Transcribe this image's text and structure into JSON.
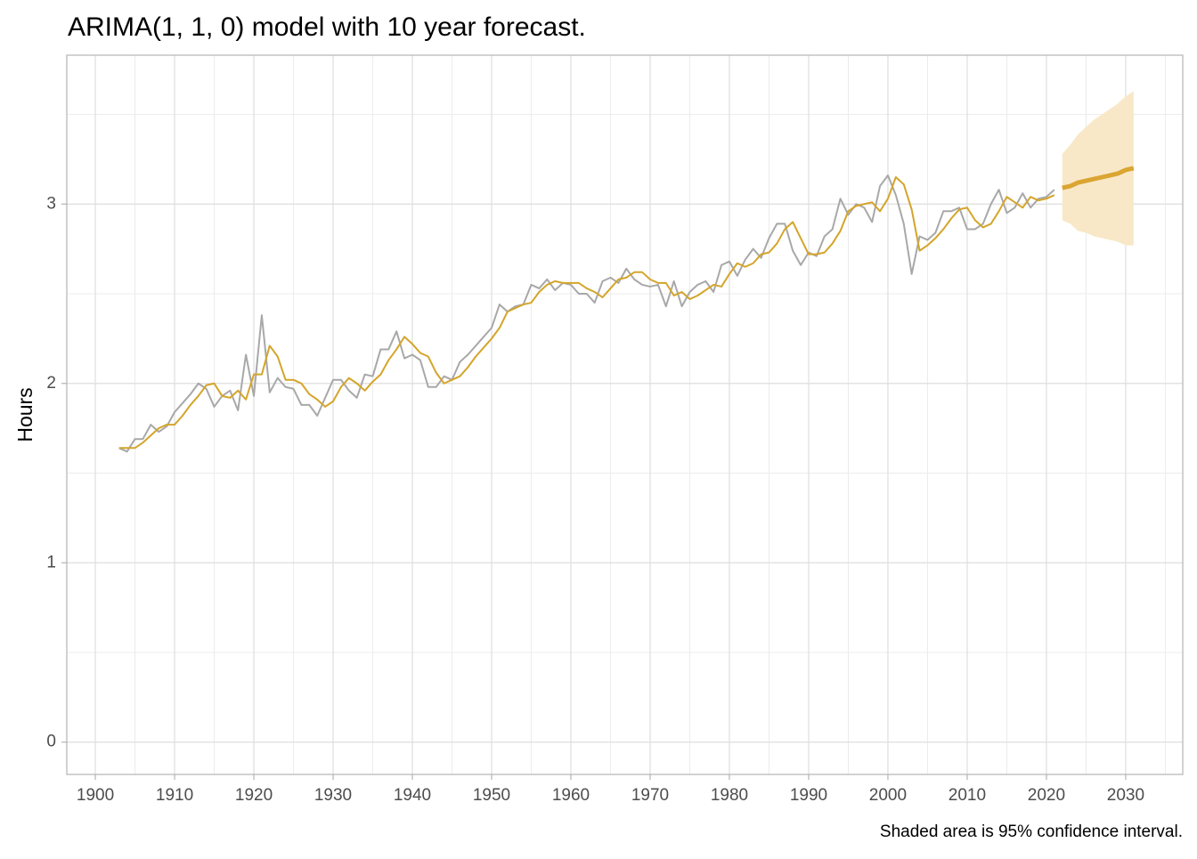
{
  "chart_data": {
    "type": "line",
    "title": "ARIMA(1, 1, 0) model with 10 year forecast.",
    "ylabel": "Hours",
    "caption": "Shaded area is 95% confidence interval.",
    "xlim": [
      1896.4,
      2037.2
    ],
    "ylim": [
      -0.18,
      3.83
    ],
    "xticks": [
      1900,
      1910,
      1920,
      1930,
      1940,
      1950,
      1960,
      1970,
      1980,
      1990,
      2000,
      2010,
      2020,
      2030
    ],
    "yticks": [
      0,
      1,
      2,
      3
    ],
    "grid": true,
    "series": [
      {
        "color": "#a8a8a8",
        "width": 2,
        "x": [
          1903,
          1904,
          1905,
          1906,
          1907,
          1908,
          1909,
          1910,
          1911,
          1912,
          1913,
          1914,
          1915,
          1916,
          1917,
          1918,
          1919,
          1920,
          1921,
          1922,
          1923,
          1924,
          1925,
          1926,
          1927,
          1928,
          1929,
          1930,
          1931,
          1932,
          1933,
          1934,
          1935,
          1936,
          1937,
          1938,
          1939,
          1940,
          1941,
          1942,
          1943,
          1944,
          1945,
          1946,
          1947,
          1948,
          1949,
          1950,
          1951,
          1952,
          1953,
          1954,
          1955,
          1956,
          1957,
          1958,
          1959,
          1960,
          1961,
          1962,
          1963,
          1964,
          1965,
          1966,
          1967,
          1968,
          1969,
          1970,
          1971,
          1972,
          1973,
          1974,
          1975,
          1976,
          1977,
          1978,
          1979,
          1980,
          1981,
          1982,
          1983,
          1984,
          1985,
          1986,
          1987,
          1988,
          1989,
          1990,
          1991,
          1992,
          1993,
          1994,
          1995,
          1996,
          1997,
          1998,
          1999,
          2000,
          2001,
          2002,
          2003,
          2004,
          2005,
          2006,
          2007,
          2008,
          2009,
          2010,
          2011,
          2012,
          2013,
          2014,
          2015,
          2016,
          2017,
          2018,
          2019,
          2020,
          2021
        ],
        "values": [
          1.64,
          1.62,
          1.69,
          1.69,
          1.77,
          1.73,
          1.76,
          1.84,
          1.89,
          1.94,
          2.0,
          1.97,
          1.87,
          1.93,
          1.96,
          1.85,
          2.16,
          1.93,
          2.38,
          1.95,
          2.03,
          1.98,
          1.97,
          1.88,
          1.88,
          1.82,
          1.92,
          2.02,
          2.02,
          1.96,
          1.92,
          2.05,
          2.04,
          2.19,
          2.19,
          2.29,
          2.14,
          2.16,
          2.13,
          1.98,
          1.98,
          2.04,
          2.02,
          2.12,
          2.16,
          2.21,
          2.26,
          2.31,
          2.44,
          2.4,
          2.43,
          2.44,
          2.55,
          2.53,
          2.58,
          2.52,
          2.56,
          2.55,
          2.5,
          2.5,
          2.45,
          2.57,
          2.59,
          2.56,
          2.64,
          2.58,
          2.55,
          2.54,
          2.55,
          2.43,
          2.57,
          2.43,
          2.51,
          2.55,
          2.57,
          2.51,
          2.66,
          2.68,
          2.6,
          2.69,
          2.75,
          2.7,
          2.81,
          2.89,
          2.89,
          2.74,
          2.66,
          2.73,
          2.71,
          2.82,
          2.86,
          3.03,
          2.94,
          3.0,
          2.98,
          2.9,
          3.1,
          3.16,
          3.05,
          2.89,
          2.61,
          2.82,
          2.8,
          2.84,
          2.96,
          2.96,
          2.98,
          2.86,
          2.86,
          2.89,
          3.0,
          3.08,
          2.95,
          2.98,
          3.06,
          2.98,
          3.03,
          3.04,
          3.08
        ]
      },
      {
        "color": "#d4a52a",
        "width": 2,
        "x": [
          1903,
          1904,
          1905,
          1906,
          1907,
          1908,
          1909,
          1910,
          1911,
          1912,
          1913,
          1914,
          1915,
          1916,
          1917,
          1918,
          1919,
          1920,
          1921,
          1922,
          1923,
          1924,
          1925,
          1926,
          1927,
          1928,
          1929,
          1930,
          1931,
          1932,
          1933,
          1934,
          1935,
          1936,
          1937,
          1938,
          1939,
          1940,
          1941,
          1942,
          1943,
          1944,
          1945,
          1946,
          1947,
          1948,
          1949,
          1950,
          1951,
          1952,
          1953,
          1954,
          1955,
          1956,
          1957,
          1958,
          1959,
          1960,
          1961,
          1962,
          1963,
          1964,
          1965,
          1966,
          1967,
          1968,
          1969,
          1970,
          1971,
          1972,
          1973,
          1974,
          1975,
          1976,
          1977,
          1978,
          1979,
          1980,
          1981,
          1982,
          1983,
          1984,
          1985,
          1986,
          1987,
          1988,
          1989,
          1990,
          1991,
          1992,
          1993,
          1994,
          1995,
          1996,
          1997,
          1998,
          1999,
          2000,
          2001,
          2002,
          2003,
          2004,
          2005,
          2006,
          2007,
          2008,
          2009,
          2010,
          2011,
          2012,
          2013,
          2014,
          2015,
          2016,
          2017,
          2018,
          2019,
          2020,
          2021
        ],
        "values": [
          1.64,
          1.64,
          1.64,
          1.67,
          1.71,
          1.75,
          1.77,
          1.77,
          1.82,
          1.88,
          1.93,
          1.99,
          2.0,
          1.93,
          1.92,
          1.96,
          1.91,
          2.05,
          2.05,
          2.21,
          2.15,
          2.02,
          2.02,
          2.0,
          1.94,
          1.91,
          1.87,
          1.9,
          1.98,
          2.03,
          2.0,
          1.96,
          2.01,
          2.05,
          2.13,
          2.19,
          2.26,
          2.22,
          2.17,
          2.15,
          2.06,
          2.0,
          2.02,
          2.04,
          2.09,
          2.15,
          2.2,
          2.25,
          2.31,
          2.4,
          2.42,
          2.44,
          2.45,
          2.51,
          2.55,
          2.57,
          2.56,
          2.56,
          2.56,
          2.53,
          2.51,
          2.48,
          2.53,
          2.58,
          2.59,
          2.62,
          2.62,
          2.58,
          2.56,
          2.56,
          2.49,
          2.51,
          2.47,
          2.49,
          2.52,
          2.55,
          2.54,
          2.61,
          2.67,
          2.65,
          2.67,
          2.72,
          2.73,
          2.78,
          2.86,
          2.9,
          2.81,
          2.72,
          2.72,
          2.73,
          2.78,
          2.85,
          2.96,
          2.99,
          3.0,
          3.01,
          2.96,
          3.03,
          3.15,
          3.11,
          2.97,
          2.74,
          2.77,
          2.81,
          2.86,
          2.92,
          2.97,
          2.98,
          2.91,
          2.87,
          2.89,
          2.96,
          3.04,
          3.01,
          2.98,
          3.04,
          3.02,
          3.03,
          3.05
        ]
      },
      {
        "color": "#dba532",
        "width": 5,
        "band_color": "#f8e8c8",
        "x": [
          2022,
          2023,
          2024,
          2025,
          2026,
          2027,
          2028,
          2029,
          2030,
          2031
        ],
        "values": [
          3.09,
          3.1,
          3.12,
          3.13,
          3.14,
          3.15,
          3.16,
          3.17,
          3.19,
          3.2
        ],
        "lower": [
          2.91,
          2.89,
          2.85,
          2.84,
          2.82,
          2.81,
          2.8,
          2.79,
          2.77,
          2.77
        ],
        "upper": [
          3.28,
          3.33,
          3.39,
          3.43,
          3.47,
          3.5,
          3.53,
          3.56,
          3.6,
          3.63
        ]
      }
    ]
  }
}
